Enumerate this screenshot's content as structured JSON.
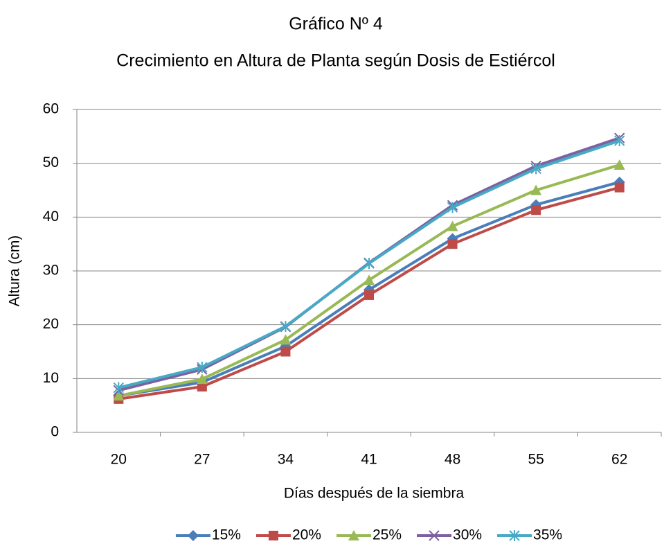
{
  "chart_data": {
    "type": "line",
    "title": "Gráfico Nº 4",
    "subtitle": "Crecimiento en Altura de Planta según Dosis de Estiércol",
    "x_label": "Días después de la siembra",
    "y_label": "Altura (cm)",
    "categories": [
      "20",
      "27",
      "34",
      "41",
      "48",
      "55",
      "62"
    ],
    "series": [
      {
        "name": "15%",
        "color": "#4a7ebb",
        "marker": "diamond",
        "values": [
          6.8,
          9.3,
          16.0,
          26.5,
          36.0,
          42.3,
          46.5
        ]
      },
      {
        "name": "20%",
        "color": "#be4b48",
        "marker": "square",
        "values": [
          6.2,
          8.5,
          15.0,
          25.5,
          35.0,
          41.3,
          45.5
        ]
      },
      {
        "name": "25%",
        "color": "#98b954",
        "marker": "triangle",
        "values": [
          6.8,
          9.9,
          17.2,
          28.3,
          38.3,
          45.0,
          49.7
        ]
      },
      {
        "name": "30%",
        "color": "#7d60a0",
        "marker": "x",
        "values": [
          7.8,
          11.7,
          19.6,
          31.5,
          42.2,
          49.5,
          54.7
        ]
      },
      {
        "name": "35%",
        "color": "#46aac5",
        "marker": "star",
        "values": [
          8.3,
          12.1,
          19.7,
          31.4,
          41.8,
          49.0,
          54.2
        ]
      }
    ],
    "ylim": [
      0,
      60
    ],
    "yticks": [
      0,
      10,
      20,
      30,
      40,
      50,
      60
    ],
    "grid": true,
    "legend": "bottom"
  }
}
